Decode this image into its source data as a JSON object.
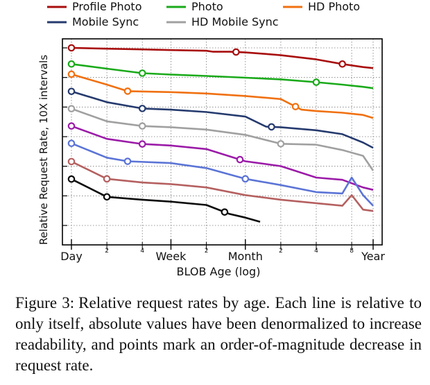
{
  "chart_data": {
    "type": "line",
    "xlabel": "BLOB Age (log)",
    "ylabel": "Relative Request Rate, 10X intervals",
    "x_scale": "log",
    "x_major_ticks": [
      {
        "label": "Day",
        "days": 1
      },
      {
        "label": "Week",
        "days": 7
      },
      {
        "label": "Month",
        "days": 30
      },
      {
        "label": "Year",
        "days": 365
      }
    ],
    "x_minor_ticks": [
      {
        "label": "2",
        "days": 2
      },
      {
        "label": "4",
        "days": 4
      },
      {
        "label": "2",
        "days": 14
      },
      {
        "label": "2",
        "days": 60
      },
      {
        "label": "4",
        "days": 120
      },
      {
        "label": "8",
        "days": 240
      }
    ],
    "y_scale": "log",
    "y_decades": 9,
    "grid": true,
    "legend_position": "top",
    "series": [
      {
        "name": "Profile Photo",
        "color": "#a80d0d",
        "x": [
          1,
          2,
          4,
          7,
          14,
          16,
          22,
          30,
          45,
          60,
          120,
          200,
          300,
          365
        ],
        "y": [
          1,
          0.9,
          0.82,
          0.75,
          0.68,
          0.6,
          0.6,
          0.55,
          0.45,
          0.38,
          0.22,
          0.12,
          0.08,
          0.07
        ],
        "points_x": [
          1,
          25,
          200
        ]
      },
      {
        "name": "Photo",
        "color": "#1aaa1a",
        "x": [
          1,
          2,
          4,
          7,
          14,
          30,
          60,
          120,
          200,
          300,
          365
        ],
        "y": [
          0.12,
          0.065,
          0.036,
          0.03,
          0.025,
          0.02,
          0.016,
          0.011,
          0.008,
          0.006,
          0.005
        ],
        "points_x": [
          1,
          4,
          120
        ]
      },
      {
        "name": "HD Photo",
        "color": "#f07010",
        "x": [
          1,
          2,
          3,
          7,
          14,
          30,
          60,
          90,
          120,
          200,
          300,
          365
        ],
        "y": [
          0.0315,
          0.008,
          0.0034,
          0.003,
          0.0025,
          0.0018,
          0.0012,
          0.0003,
          0.00025,
          0.0002,
          0.00015,
          0.0001
        ],
        "points_x": [
          1,
          3,
          80
        ]
      },
      {
        "name": "Mobile Sync",
        "color": "#253a6e",
        "x": [
          1,
          2,
          4,
          7,
          14,
          30,
          45,
          60,
          120,
          200,
          300,
          365
        ],
        "y": [
          0.0033,
          0.0008,
          0.00035,
          0.0003,
          0.00022,
          0.00012,
          3.2e-05,
          3e-05,
          2e-05,
          1.2e-05,
          4e-06,
          2e-06
        ],
        "points_x": [
          1,
          4,
          50
        ]
      },
      {
        "name": "HD Mobile Sync",
        "color": "#a0a0a0",
        "x": [
          1,
          2,
          4,
          7,
          14,
          30,
          60,
          120,
          200,
          300,
          365
        ],
        "y": [
          0.00034,
          6.5e-05,
          3.5e-05,
          3e-05,
          2.2e-05,
          1.1e-05,
          3.4e-06,
          3e-06,
          1.5e-06,
          7e-07,
          1e-07
        ],
        "points_x": [
          1,
          4,
          60
        ]
      },
      {
        "name": "",
        "color": "#9b1ba8",
        "x": [
          1,
          2,
          4,
          7,
          14,
          30,
          60,
          120,
          200,
          300,
          365
        ],
        "y": [
          3.5e-05,
          6.5e-06,
          3.3e-06,
          2.7e-06,
          1.7e-06,
          3.4e-07,
          1.8e-07,
          4e-08,
          3e-08,
          1.1e-08,
          8e-09
        ],
        "points_x": [
          1,
          4,
          27
        ]
      },
      {
        "name": "",
        "color": "#5b74d6",
        "x": [
          1,
          2,
          3,
          7,
          14,
          30,
          60,
          120,
          200,
          240,
          300,
          365
        ],
        "y": [
          3.6e-06,
          5.5e-07,
          3.4e-07,
          2.7e-07,
          1.4e-07,
          3.4e-08,
          1.5e-08,
          6e-09,
          5e-09,
          4e-08,
          4e-09,
          1e-09
        ],
        "points_x": [
          1,
          3,
          30
        ]
      },
      {
        "name": "",
        "color": "#b56060",
        "x": [
          1,
          2,
          4,
          7,
          14,
          30,
          60,
          120,
          200,
          240,
          300,
          365
        ],
        "y": [
          3.3e-07,
          3.4e-08,
          2.1e-08,
          1.7e-08,
          1.1e-08,
          4e-09,
          2.2e-09,
          1.4e-09,
          1e-09,
          4e-09,
          6e-10,
          5e-10
        ],
        "points_x": [
          1,
          2
        ]
      },
      {
        "name": "",
        "color": "#0a0a0a",
        "x": [
          1,
          2,
          4,
          7,
          14,
          22,
          30,
          40
        ],
        "y": [
          3.3e-08,
          3.2e-09,
          2.2e-09,
          1.7e-09,
          1.1e-09,
          3.4e-10,
          2.1e-10,
          1.2e-10
        ],
        "points_x": [
          1,
          2,
          20
        ]
      }
    ]
  },
  "caption": {
    "label": "Figure 3:",
    "text": "Relative request rates by age. Each line is relative to only itself, absolute values have been denormalized to increase readability, and points mark an order-of-magnitude decrease in request rate."
  }
}
